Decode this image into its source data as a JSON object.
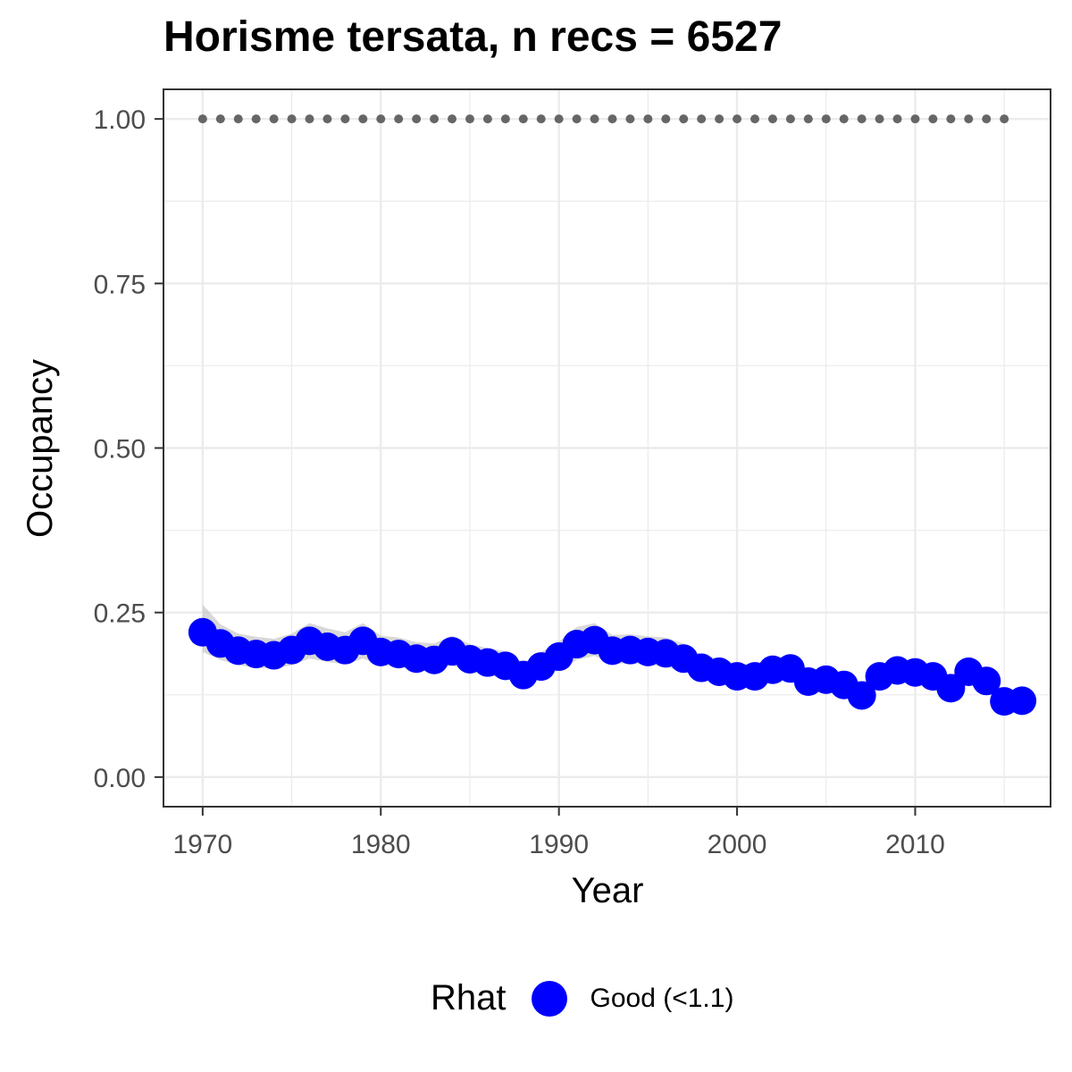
{
  "chart_data": {
    "type": "line",
    "title": "Horisme tersata, n recs = 6527",
    "xlabel": "Year",
    "ylabel": "Occupancy",
    "xlim": [
      1967.8,
      2017.6
    ],
    "ylim": [
      -0.045,
      1.045
    ],
    "x_ticks": [
      1970,
      1980,
      1990,
      2000,
      2010
    ],
    "y_ticks": [
      0,
      0.25,
      0.5,
      0.75,
      1.0
    ],
    "y_tick_labels": [
      "0.00",
      "0.25",
      "0.50",
      "0.75",
      "1.00"
    ],
    "grid": true,
    "legend_position": "bottom",
    "legend": {
      "title": "Rhat",
      "label": "Good (<1.1)"
    },
    "colors": {
      "points": "#0000FF",
      "ribbon": "#BEBEBE",
      "reference": "#666666",
      "grid": "#EBEBEB"
    },
    "series": [
      {
        "name": "Good (<1.1)",
        "x": [
          1970,
          1971,
          1972,
          1973,
          1974,
          1975,
          1976,
          1977,
          1978,
          1979,
          1980,
          1981,
          1982,
          1983,
          1984,
          1985,
          1986,
          1987,
          1988,
          1989,
          1990,
          1991,
          1992,
          1993,
          1994,
          1995,
          1996,
          1997,
          1998,
          1999,
          2000,
          2001,
          2002,
          2003,
          2004,
          2005,
          2006,
          2007,
          2008,
          2009,
          2010,
          2011,
          2012,
          2013,
          2014,
          2015,
          2016
        ],
        "values": [
          0.22,
          0.203,
          0.192,
          0.187,
          0.185,
          0.193,
          0.207,
          0.198,
          0.193,
          0.207,
          0.19,
          0.187,
          0.18,
          0.178,
          0.191,
          0.179,
          0.174,
          0.169,
          0.155,
          0.168,
          0.183,
          0.202,
          0.208,
          0.192,
          0.193,
          0.19,
          0.188,
          0.18,
          0.166,
          0.16,
          0.153,
          0.153,
          0.163,
          0.165,
          0.145,
          0.148,
          0.14,
          0.124,
          0.153,
          0.162,
          0.159,
          0.153,
          0.135,
          0.16,
          0.146,
          0.115,
          0.116
        ],
        "lower": [
          0.19,
          0.178,
          0.17,
          0.166,
          0.165,
          0.17,
          0.18,
          0.175,
          0.171,
          0.18,
          0.17,
          0.167,
          0.162,
          0.16,
          0.17,
          0.16,
          0.155,
          0.15,
          0.14,
          0.15,
          0.162,
          0.178,
          0.184,
          0.172,
          0.173,
          0.17,
          0.168,
          0.16,
          0.15,
          0.144,
          0.138,
          0.138,
          0.146,
          0.148,
          0.132,
          0.133,
          0.126,
          0.112,
          0.138,
          0.146,
          0.143,
          0.138,
          0.122,
          0.143,
          0.131,
          0.104,
          0.105
        ],
        "upper": [
          0.262,
          0.232,
          0.218,
          0.213,
          0.21,
          0.218,
          0.234,
          0.226,
          0.22,
          0.234,
          0.215,
          0.212,
          0.205,
          0.203,
          0.215,
          0.202,
          0.196,
          0.191,
          0.174,
          0.19,
          0.206,
          0.228,
          0.234,
          0.216,
          0.217,
          0.214,
          0.212,
          0.203,
          0.186,
          0.18,
          0.172,
          0.172,
          0.182,
          0.184,
          0.162,
          0.165,
          0.157,
          0.14,
          0.171,
          0.18,
          0.177,
          0.171,
          0.152,
          0.178,
          0.163,
          0.13,
          0.131
        ]
      },
      {
        "name": "",
        "x": [
          1970,
          1971,
          1972,
          1973,
          1974,
          1975,
          1976,
          1977,
          1978,
          1979,
          1980,
          1981,
          1982,
          1983,
          1984,
          1985,
          1986,
          1987,
          1988,
          1989,
          1990,
          1991,
          1992,
          1993,
          1994,
          1995,
          1996,
          1997,
          1998,
          1999,
          2000,
          2001,
          2002,
          2003,
          2004,
          2005,
          2006,
          2007,
          2008,
          2009,
          2010,
          2011,
          2012,
          2013,
          2014,
          2015
        ],
        "values": [
          1,
          1,
          1,
          1,
          1,
          1,
          1,
          1,
          1,
          1,
          1,
          1,
          1,
          1,
          1,
          1,
          1,
          1,
          1,
          1,
          1,
          1,
          1,
          1,
          1,
          1,
          1,
          1,
          1,
          1,
          1,
          1,
          1,
          1,
          1,
          1,
          1,
          1,
          1,
          1,
          1,
          1,
          1,
          1,
          1,
          1
        ]
      }
    ]
  }
}
